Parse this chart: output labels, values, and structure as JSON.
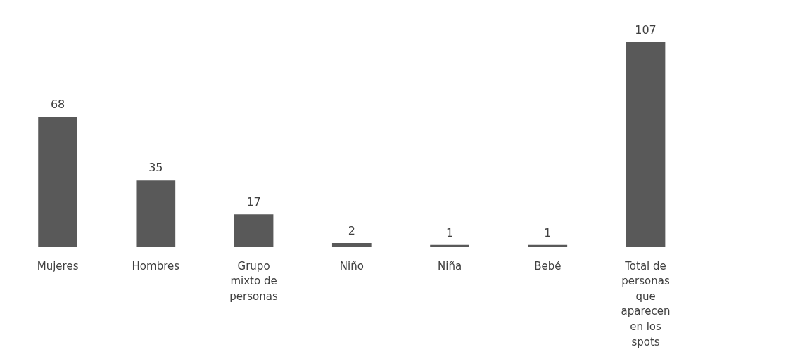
{
  "chart_data": {
    "type": "bar",
    "categories": [
      "Mujeres",
      "Hombres",
      "Grupo mixto de personas",
      "Niño",
      "Niña",
      "Bebé",
      "Total de personas que aparecen en los spots"
    ],
    "values": [
      68,
      35,
      17,
      2,
      1,
      1,
      107
    ],
    "color": "#595959",
    "tick_labels": "x",
    "data_labels": true,
    "grid": false
  }
}
